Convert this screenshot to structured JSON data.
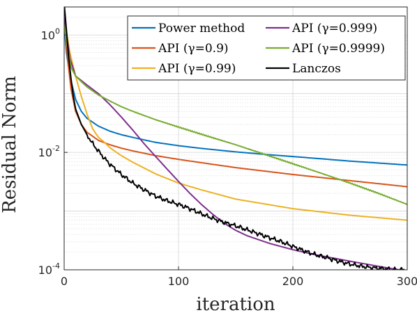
{
  "chart_data": {
    "type": "line",
    "title": "",
    "xlabel": "iteration",
    "ylabel": "Residual Norm",
    "xlim": [
      0,
      300
    ],
    "ylim": [
      0.0001,
      3
    ],
    "yscale": "log",
    "grid": true,
    "minor_grid": true,
    "legend_position": "top-right",
    "legend_columns": 2,
    "x_ticks": [
      0,
      100,
      200,
      300
    ],
    "y_ticks": [
      {
        "base": "10",
        "exp": "0",
        "value": 1
      },
      {
        "base": "10",
        "exp": "-2",
        "value": 0.01
      },
      {
        "base": "10",
        "exp": "-4",
        "value": 0.0001
      }
    ],
    "series": [
      {
        "name": "Power method",
        "color": "#0072BD",
        "x": [
          0,
          2,
          5,
          10,
          15,
          20,
          30,
          40,
          50,
          60,
          80,
          100,
          120,
          150,
          180,
          200,
          250,
          300
        ],
        "y": [
          1.5,
          0.5,
          0.2,
          0.08,
          0.05,
          0.038,
          0.028,
          0.023,
          0.02,
          0.018,
          0.0148,
          0.013,
          0.0117,
          0.0102,
          0.0091,
          0.0085,
          0.0071,
          0.0061
        ]
      },
      {
        "name": "API (γ=0.9)",
        "color": "#D95319",
        "x": [
          0,
          3,
          6,
          10,
          15,
          20,
          30,
          40,
          50,
          60,
          80,
          100,
          150,
          200,
          250,
          300
        ],
        "y": [
          2,
          0.4,
          0.12,
          0.05,
          0.03,
          0.022,
          0.016,
          0.0135,
          0.0118,
          0.0106,
          0.0088,
          0.0076,
          0.0055,
          0.0042,
          0.0033,
          0.0026
        ]
      },
      {
        "name": "API (γ=0.99)",
        "color": "#EDB120",
        "x": [
          0,
          5,
          10,
          15,
          20,
          25,
          30,
          35,
          40,
          50,
          60,
          80,
          100,
          120,
          150,
          200,
          250,
          300
        ],
        "y": [
          2,
          0.5,
          0.2,
          0.09,
          0.045,
          0.025,
          0.018,
          0.015,
          0.012,
          0.0088,
          0.0068,
          0.0043,
          0.003,
          0.0023,
          0.0016,
          0.0011,
          0.00085,
          0.0007
        ]
      },
      {
        "name": "API (γ=0.999)",
        "color": "#7E2F8E",
        "x": [
          0,
          5,
          10,
          20,
          30,
          40,
          50,
          60,
          70,
          80,
          90,
          100,
          110,
          120,
          130,
          140,
          150,
          160,
          180,
          200,
          220,
          250,
          280,
          300
        ],
        "y": [
          2,
          0.4,
          0.2,
          0.14,
          0.1,
          0.065,
          0.04,
          0.024,
          0.014,
          0.0085,
          0.0052,
          0.0032,
          0.002,
          0.0013,
          0.00088,
          0.00062,
          0.00047,
          0.00038,
          0.00028,
          0.00022,
          0.00018,
          0.00014,
          0.00011,
          9.5e-05
        ]
      },
      {
        "name": "API (γ=0.9999)",
        "color": "#77AC30",
        "x": [
          0,
          3,
          6,
          10,
          15,
          20,
          30,
          40,
          50,
          60,
          80,
          100,
          125,
          150,
          175,
          200,
          225,
          250,
          275,
          300
        ],
        "y": [
          1.5,
          0.6,
          0.28,
          0.2,
          0.16,
          0.13,
          0.095,
          0.075,
          0.06,
          0.05,
          0.036,
          0.027,
          0.019,
          0.0135,
          0.0093,
          0.0064,
          0.0044,
          0.003,
          0.002,
          0.0013
        ]
      },
      {
        "name": "Lanczos",
        "color": "#000000",
        "x": [
          0,
          2,
          4,
          6,
          8,
          10,
          15,
          20,
          25,
          30,
          35,
          40,
          50,
          60,
          70,
          80,
          90,
          100,
          110,
          120,
          130,
          140,
          150,
          160,
          170,
          180,
          190,
          200,
          210,
          220,
          230,
          240,
          250,
          260,
          270,
          280,
          290,
          300
        ],
        "y": [
          3.5,
          1.2,
          0.4,
          0.18,
          0.09,
          0.055,
          0.03,
          0.02,
          0.014,
          0.0105,
          0.008,
          0.0063,
          0.0042,
          0.003,
          0.0023,
          0.0018,
          0.0015,
          0.0013,
          0.0011,
          0.0009,
          0.00075,
          0.00064,
          0.00056,
          0.00048,
          0.00041,
          0.00035,
          0.0003,
          0.00025,
          0.00021,
          0.00018,
          0.00016,
          0.00014,
          0.000125,
          0.000115,
          0.000108,
          0.000104,
          0.0001,
          0.0001
        ]
      }
    ]
  }
}
